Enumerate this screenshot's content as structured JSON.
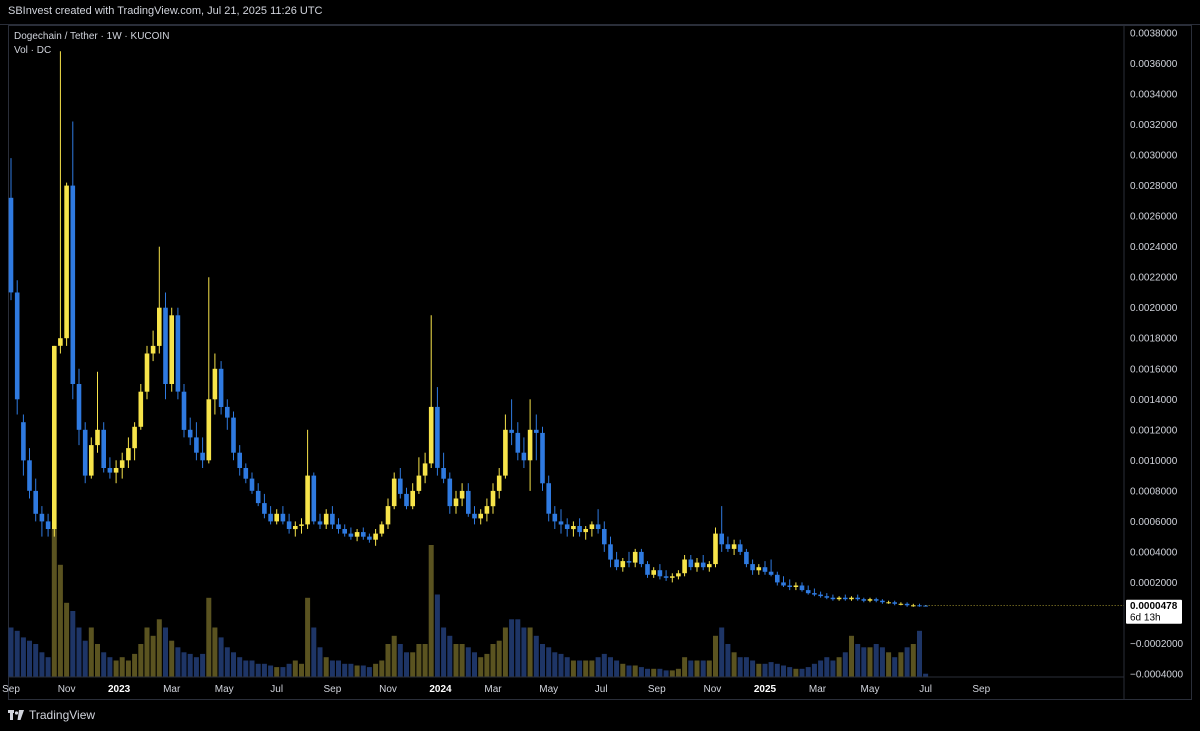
{
  "header": {
    "attribution": "SBInvest created with TradingView.com, Jul 21, 2025 11:26 UTC"
  },
  "legend": {
    "symbol_line": "Dogechain / Tether · 1W · KUCOIN",
    "volume_line": "Vol · DC"
  },
  "footer": {
    "brand": "TradingView"
  },
  "colors": {
    "up": "#f7e44a",
    "down": "#2f7ae0",
    "vol_up": "#5a5320",
    "vol_down": "#1e3566",
    "price_label_bg": "#ffffff",
    "price_label_text": "#000000"
  },
  "chart_data": {
    "type": "candlestick",
    "y_axis": {
      "min": -0.0004,
      "max": 0.0038,
      "ticks": [
        "0.0038000",
        "0.0036000",
        "0.0034000",
        "0.0032000",
        "0.0030000",
        "0.0028000",
        "0.0026000",
        "0.0024000",
        "0.0022000",
        "0.0020000",
        "0.0018000",
        "0.0016000",
        "0.0014000",
        "0.0012000",
        "0.0010000",
        "0.0008000",
        "0.0006000",
        "0.0004000",
        "0.0002000",
        "−0.0002000",
        "−0.0004000"
      ]
    },
    "x_axis": {
      "labels": [
        {
          "text": "Sep",
          "w": 0,
          "bold": false
        },
        {
          "text": "Nov",
          "w": 9,
          "bold": false
        },
        {
          "text": "2023",
          "w": 17.5,
          "bold": true
        },
        {
          "text": "Mar",
          "w": 26,
          "bold": false
        },
        {
          "text": "May",
          "w": 34.5,
          "bold": false
        },
        {
          "text": "Jul",
          "w": 43,
          "bold": false
        },
        {
          "text": "Sep",
          "w": 52,
          "bold": false
        },
        {
          "text": "Nov",
          "w": 61,
          "bold": false
        },
        {
          "text": "2024",
          "w": 69.5,
          "bold": true
        },
        {
          "text": "Mar",
          "w": 78,
          "bold": false
        },
        {
          "text": "May",
          "w": 87,
          "bold": false
        },
        {
          "text": "Jul",
          "w": 95.5,
          "bold": false
        },
        {
          "text": "Sep",
          "w": 104.5,
          "bold": false
        },
        {
          "text": "Nov",
          "w": 113.5,
          "bold": false
        },
        {
          "text": "2025",
          "w": 122,
          "bold": true
        },
        {
          "text": "Mar",
          "w": 130.5,
          "bold": false
        },
        {
          "text": "May",
          "w": 139,
          "bold": false
        },
        {
          "text": "Jul",
          "w": 148,
          "bold": false
        },
        {
          "text": "Sep",
          "w": 157,
          "bold": false
        }
      ]
    },
    "last_price": {
      "value": "0.0000478",
      "countdown": "6d 13h",
      "y": 4.78e-05
    },
    "candles": [
      [
        0.00272,
        0.00298,
        0.00205,
        0.0021,
        0.3
      ],
      [
        0.0021,
        0.00218,
        0.0013,
        0.0014,
        0.28
      ],
      [
        0.00125,
        0.0013,
        0.0009,
        0.001,
        0.24
      ],
      [
        0.001,
        0.00108,
        0.00075,
        0.0008,
        0.22
      ],
      [
        0.0008,
        0.00088,
        0.0006,
        0.00065,
        0.2
      ],
      [
        0.00065,
        0.0007,
        0.0005,
        0.0006,
        0.15
      ],
      [
        0.0006,
        0.00065,
        0.0005,
        0.00055,
        0.12
      ],
      [
        0.00055,
        0.00175,
        0.0005,
        0.00175,
        0.9
      ],
      [
        0.00175,
        0.00368,
        0.0017,
        0.0018,
        0.68
      ],
      [
        0.0018,
        0.00282,
        0.00175,
        0.0028,
        0.45
      ],
      [
        0.0028,
        0.00322,
        0.0014,
        0.0015,
        0.4
      ],
      [
        0.0015,
        0.0016,
        0.0011,
        0.0012,
        0.3
      ],
      [
        0.0012,
        0.00125,
        0.00085,
        0.0009,
        0.22
      ],
      [
        0.0009,
        0.00115,
        0.00088,
        0.0011,
        0.3
      ],
      [
        0.0011,
        0.00158,
        0.00105,
        0.0012,
        0.2
      ],
      [
        0.0012,
        0.00125,
        0.00092,
        0.00095,
        0.15
      ],
      [
        0.00095,
        0.00102,
        0.00088,
        0.00092,
        0.12
      ],
      [
        0.00092,
        0.001,
        0.00085,
        0.00095,
        0.1
      ],
      [
        0.00095,
        0.00105,
        0.00088,
        0.001,
        0.12
      ],
      [
        0.001,
        0.00115,
        0.00095,
        0.00108,
        0.1
      ],
      [
        0.00108,
        0.00125,
        0.001,
        0.00122,
        0.14
      ],
      [
        0.00122,
        0.0015,
        0.0012,
        0.00145,
        0.2
      ],
      [
        0.00145,
        0.00175,
        0.0014,
        0.0017,
        0.3
      ],
      [
        0.0017,
        0.00185,
        0.00165,
        0.00175,
        0.25
      ],
      [
        0.00175,
        0.0024,
        0.0017,
        0.002,
        0.35
      ],
      [
        0.002,
        0.0021,
        0.0014,
        0.0015,
        0.3
      ],
      [
        0.0015,
        0.002,
        0.00145,
        0.00195,
        0.22
      ],
      [
        0.00195,
        0.002,
        0.0014,
        0.00145,
        0.18
      ],
      [
        0.00145,
        0.0015,
        0.00115,
        0.0012,
        0.15
      ],
      [
        0.0012,
        0.00128,
        0.0011,
        0.00115,
        0.14
      ],
      [
        0.00115,
        0.00125,
        0.001,
        0.00105,
        0.12
      ],
      [
        0.00105,
        0.00115,
        0.00095,
        0.001,
        0.14
      ],
      [
        0.001,
        0.0022,
        0.00098,
        0.0014,
        0.48
      ],
      [
        0.0014,
        0.0017,
        0.0013,
        0.0016,
        0.3
      ],
      [
        0.0016,
        0.00165,
        0.0013,
        0.00135,
        0.24
      ],
      [
        0.00135,
        0.0014,
        0.0012,
        0.00128,
        0.18
      ],
      [
        0.00128,
        0.00132,
        0.001,
        0.00105,
        0.15
      ],
      [
        0.00105,
        0.0011,
        0.0009,
        0.00095,
        0.12
      ],
      [
        0.00095,
        0.00098,
        0.00085,
        0.00088,
        0.1
      ],
      [
        0.00088,
        0.00092,
        0.00078,
        0.0008,
        0.1
      ],
      [
        0.0008,
        0.00085,
        0.0007,
        0.00072,
        0.08
      ],
      [
        0.00072,
        0.00078,
        0.00062,
        0.00065,
        0.08
      ],
      [
        0.00065,
        0.0007,
        0.00058,
        0.0006,
        0.07
      ],
      [
        0.0006,
        0.00068,
        0.00058,
        0.00065,
        0.06
      ],
      [
        0.00065,
        0.0007,
        0.00058,
        0.0006,
        0.06
      ],
      [
        0.0006,
        0.00065,
        0.00052,
        0.00055,
        0.08
      ],
      [
        0.00055,
        0.0006,
        0.0005,
        0.00057,
        0.1
      ],
      [
        0.00057,
        0.00062,
        0.00052,
        0.00058,
        0.08
      ],
      [
        0.00058,
        0.0012,
        0.00055,
        0.0009,
        0.48
      ],
      [
        0.0009,
        0.00092,
        0.00058,
        0.0006,
        0.3
      ],
      [
        0.0006,
        0.00065,
        0.00055,
        0.00058,
        0.18
      ],
      [
        0.00058,
        0.00068,
        0.00055,
        0.00065,
        0.12
      ],
      [
        0.00065,
        0.0007,
        0.00055,
        0.00058,
        0.1
      ],
      [
        0.00058,
        0.00062,
        0.00052,
        0.00055,
        0.1
      ],
      [
        0.00055,
        0.00058,
        0.0005,
        0.00052,
        0.08
      ],
      [
        0.00052,
        0.00056,
        0.00048,
        0.0005,
        0.08
      ],
      [
        0.0005,
        0.00055,
        0.00047,
        0.00053,
        0.07
      ],
      [
        0.00053,
        0.00056,
        0.00048,
        0.0005,
        0.07
      ],
      [
        0.0005,
        0.00052,
        0.00046,
        0.00048,
        0.06
      ],
      [
        0.00048,
        0.00055,
        0.00044,
        0.00052,
        0.08
      ],
      [
        0.00052,
        0.0006,
        0.0005,
        0.00058,
        0.1
      ],
      [
        0.00058,
        0.00075,
        0.00055,
        0.0007,
        0.2
      ],
      [
        0.0007,
        0.00092,
        0.00068,
        0.00088,
        0.25
      ],
      [
        0.00088,
        0.00095,
        0.00075,
        0.00078,
        0.2
      ],
      [
        0.00078,
        0.00082,
        0.00068,
        0.0007,
        0.15
      ],
      [
        0.0007,
        0.00085,
        0.00068,
        0.0008,
        0.15
      ],
      [
        0.0008,
        0.00102,
        0.00078,
        0.0009,
        0.2
      ],
      [
        0.0009,
        0.00105,
        0.00085,
        0.00098,
        0.2
      ],
      [
        0.00098,
        0.00195,
        0.00095,
        0.00135,
        0.8
      ],
      [
        0.00135,
        0.00148,
        0.0009,
        0.00095,
        0.5
      ],
      [
        0.00095,
        0.00105,
        0.00085,
        0.00088,
        0.3
      ],
      [
        0.00088,
        0.00092,
        0.00065,
        0.0007,
        0.25
      ],
      [
        0.0007,
        0.0008,
        0.00065,
        0.00075,
        0.2
      ],
      [
        0.00075,
        0.00085,
        0.0007,
        0.0008,
        0.2
      ],
      [
        0.0008,
        0.00085,
        0.00063,
        0.00065,
        0.18
      ],
      [
        0.00065,
        0.0007,
        0.00058,
        0.00062,
        0.15
      ],
      [
        0.00062,
        0.00068,
        0.00058,
        0.00065,
        0.12
      ],
      [
        0.00065,
        0.00075,
        0.0006,
        0.0007,
        0.14
      ],
      [
        0.0007,
        0.00085,
        0.00065,
        0.0008,
        0.2
      ],
      [
        0.0008,
        0.00095,
        0.00075,
        0.0009,
        0.22
      ],
      [
        0.0009,
        0.0013,
        0.00088,
        0.0012,
        0.3
      ],
      [
        0.0012,
        0.0014,
        0.0011,
        0.00118,
        0.35
      ],
      [
        0.00118,
        0.00125,
        0.001,
        0.00105,
        0.35
      ],
      [
        0.00105,
        0.00115,
        0.00095,
        0.001,
        0.3
      ],
      [
        0.001,
        0.0014,
        0.0008,
        0.0012,
        0.3
      ],
      [
        0.0012,
        0.0013,
        0.001,
        0.00118,
        0.25
      ],
      [
        0.00118,
        0.00122,
        0.0008,
        0.00085,
        0.2
      ],
      [
        0.00085,
        0.0009,
        0.0006,
        0.00065,
        0.18
      ],
      [
        0.00065,
        0.0007,
        0.00055,
        0.0006,
        0.15
      ],
      [
        0.0006,
        0.00068,
        0.00052,
        0.00058,
        0.14
      ],
      [
        0.00058,
        0.00062,
        0.0005,
        0.00055,
        0.12
      ],
      [
        0.00055,
        0.0006,
        0.0005,
        0.00057,
        0.1
      ],
      [
        0.00057,
        0.00062,
        0.0005,
        0.00053,
        0.1
      ],
      [
        0.00053,
        0.00057,
        0.00048,
        0.00055,
        0.1
      ],
      [
        0.00055,
        0.0006,
        0.0005,
        0.00058,
        0.1
      ],
      [
        0.00058,
        0.00068,
        0.00052,
        0.00055,
        0.12
      ],
      [
        0.00055,
        0.0006,
        0.0004,
        0.00045,
        0.14
      ],
      [
        0.00045,
        0.0005,
        0.0003,
        0.00035,
        0.12
      ],
      [
        0.00035,
        0.0004,
        0.00028,
        0.0003,
        0.1
      ],
      [
        0.0003,
        0.00036,
        0.00027,
        0.00034,
        0.08
      ],
      [
        0.00034,
        0.0004,
        0.0003,
        0.00033,
        0.07
      ],
      [
        0.00033,
        0.00042,
        0.0003,
        0.0004,
        0.07
      ],
      [
        0.0004,
        0.00042,
        0.0003,
        0.00032,
        0.06
      ],
      [
        0.00032,
        0.00034,
        0.00023,
        0.00025,
        0.05
      ],
      [
        0.00025,
        0.0003,
        0.00023,
        0.00028,
        0.05
      ],
      [
        0.00028,
        0.00032,
        0.00022,
        0.00024,
        0.05
      ],
      [
        0.00024,
        0.00028,
        0.00021,
        0.00023,
        0.04
      ],
      [
        0.00023,
        0.00026,
        0.0002,
        0.00024,
        0.04
      ],
      [
        0.00024,
        0.00028,
        0.00022,
        0.00026,
        0.05
      ],
      [
        0.00026,
        0.00038,
        0.00024,
        0.00035,
        0.12
      ],
      [
        0.00035,
        0.00038,
        0.00028,
        0.0003,
        0.1
      ],
      [
        0.0003,
        0.00036,
        0.00027,
        0.00033,
        0.1
      ],
      [
        0.00033,
        0.00038,
        0.00028,
        0.0003,
        0.1
      ],
      [
        0.0003,
        0.00034,
        0.00027,
        0.00032,
        0.1
      ],
      [
        0.00032,
        0.00056,
        0.0003,
        0.00052,
        0.25
      ],
      [
        0.00052,
        0.0007,
        0.0004,
        0.00045,
        0.3
      ],
      [
        0.00045,
        0.0005,
        0.0004,
        0.00042,
        0.2
      ],
      [
        0.00042,
        0.00048,
        0.00038,
        0.00045,
        0.15
      ],
      [
        0.00045,
        0.00048,
        0.00038,
        0.0004,
        0.12
      ],
      [
        0.0004,
        0.00042,
        0.0003,
        0.00032,
        0.12
      ],
      [
        0.00032,
        0.00035,
        0.00025,
        0.00028,
        0.1
      ],
      [
        0.00028,
        0.00032,
        0.00025,
        0.0003,
        0.08
      ],
      [
        0.0003,
        0.00034,
        0.00025,
        0.00027,
        0.08
      ],
      [
        0.00027,
        0.00035,
        0.00024,
        0.00025,
        0.09
      ],
      [
        0.00025,
        0.00027,
        0.00018,
        0.0002,
        0.08
      ],
      [
        0.0002,
        0.00024,
        0.00017,
        0.00018,
        0.07
      ],
      [
        0.00018,
        0.00022,
        0.00015,
        0.00017,
        0.06
      ],
      [
        0.00017,
        0.0002,
        0.00015,
        0.00018,
        0.05
      ],
      [
        0.00018,
        0.0002,
        0.00014,
        0.00015,
        0.05
      ],
      [
        0.00015,
        0.00018,
        0.00012,
        0.00013,
        0.06
      ],
      [
        0.00013,
        0.00016,
        0.00011,
        0.00012,
        0.08
      ],
      [
        0.00012,
        0.00014,
        0.0001,
        0.00011,
        0.1
      ],
      [
        0.00011,
        0.00013,
        9e-05,
        0.0001,
        0.12
      ],
      [
        0.0001,
        0.00012,
        8e-05,
        9e-05,
        0.1
      ],
      [
        9e-05,
        0.00011,
        8e-05,
        0.0001,
        0.12
      ],
      [
        0.0001,
        0.00012,
        8e-05,
        9e-05,
        0.15
      ],
      [
        9e-05,
        0.00011,
        8e-05,
        0.0001,
        0.25
      ],
      [
        0.0001,
        0.00012,
        8e-05,
        9e-05,
        0.2
      ],
      [
        9e-05,
        0.0001,
        7e-05,
        8e-05,
        0.18
      ],
      [
        8e-05,
        0.0001,
        7e-05,
        9e-05,
        0.18
      ],
      [
        9e-05,
        0.0001,
        7e-05,
        8e-05,
        0.2
      ],
      [
        8e-05,
        9e-05,
        6e-05,
        7e-05,
        0.18
      ],
      [
        7e-05,
        8e-05,
        6e-05,
        7e-05,
        0.15
      ],
      [
        7e-05,
        8e-05,
        5e-05,
        6e-05,
        0.12
      ],
      [
        6e-05,
        7e-05,
        5e-05,
        6e-05,
        0.15
      ],
      [
        6e-05,
        7e-05,
        4e-05,
        5e-05,
        0.18
      ],
      [
        5e-05,
        6e-05,
        4e-05,
        5e-05,
        0.2
      ],
      [
        5e-05,
        6e-05,
        4e-05,
        4.8e-05,
        0.28
      ],
      [
        4.8e-05,
        5.2e-05,
        4.6e-05,
        4.78e-05,
        0.02
      ]
    ]
  }
}
